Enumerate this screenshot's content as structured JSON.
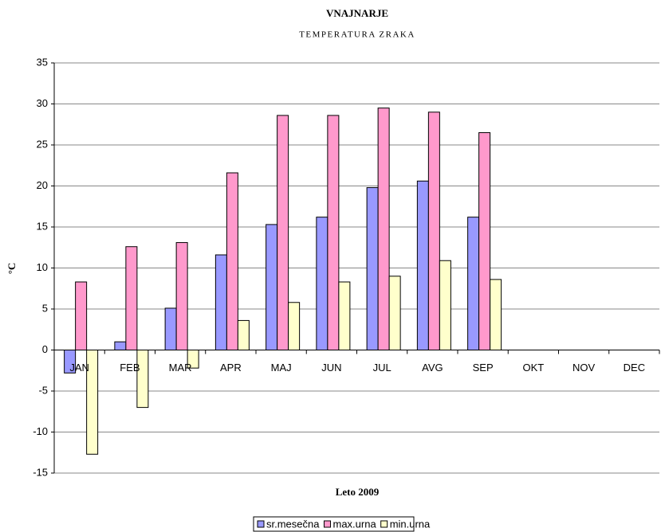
{
  "chart_data": {
    "type": "bar",
    "title": "VNAJNARJE",
    "subtitle": "TEMPERATURA ZRAKA",
    "y_label": "°C",
    "x_label": "Leto 2009",
    "categories": [
      "JAN",
      "FEB",
      "MAR",
      "APR",
      "MAJ",
      "JUN",
      "JUL",
      "AVG",
      "SEP",
      "OKT",
      "NOV",
      "DEC"
    ],
    "series": [
      {
        "name": "sr.mesečna",
        "color": "#9999ff",
        "values": [
          -2.8,
          1.0,
          5.1,
          11.6,
          15.3,
          16.2,
          19.8,
          20.6,
          16.2,
          null,
          null,
          null
        ]
      },
      {
        "name": "max.urna",
        "color": "#ff99cc",
        "values": [
          8.3,
          12.6,
          13.1,
          21.6,
          28.6,
          28.6,
          29.5,
          29.0,
          26.5,
          null,
          null,
          null
        ]
      },
      {
        "name": "min.urna",
        "color": "#ffffcc",
        "values": [
          -12.7,
          -7.0,
          -2.2,
          3.6,
          5.8,
          8.3,
          9.0,
          10.9,
          8.6,
          null,
          null,
          null
        ]
      }
    ],
    "ylim": [
      -15,
      35
    ],
    "yticks": [
      -15,
      -10,
      -5,
      0,
      5,
      10,
      15,
      20,
      25,
      30,
      35
    ],
    "grid": true,
    "legend": "bottom"
  }
}
